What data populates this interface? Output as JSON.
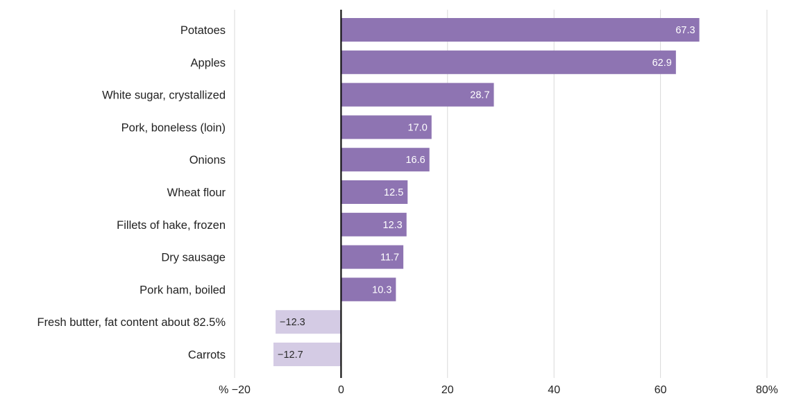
{
  "chart_data": {
    "type": "bar",
    "orientation": "horizontal",
    "categories": [
      "Potatoes",
      "Apples",
      "White sugar, crystallized",
      "Pork, boneless (loin)",
      "Onions",
      "Wheat flour",
      "Fillets of hake, frozen",
      "Dry sausage",
      "Pork ham, boiled",
      "Fresh butter, fat content about 82.5%",
      "Carrots"
    ],
    "values": [
      67.3,
      62.9,
      28.7,
      17.0,
      16.6,
      12.5,
      12.3,
      11.7,
      10.3,
      -12.3,
      -12.7
    ],
    "value_labels": [
      "67.3",
      "62.9",
      "28.7",
      "17.0",
      "16.6",
      "12.5",
      "12.3",
      "11.7",
      "10.3",
      "−12.3",
      "−12.7"
    ],
    "xlim": [
      -20,
      80
    ],
    "ticks": [
      -20,
      0,
      20,
      40,
      60,
      80
    ],
    "tick_labels": [
      "% −20",
      "0",
      "20",
      "40",
      "60",
      "80%"
    ],
    "grid": true,
    "colors": {
      "positive": "#8e74b2",
      "negative": "#d4cbe4",
      "positive_label": "#ffffff",
      "negative_label": "#2a2a2a",
      "zero_line": "#111111",
      "grid": "#d9d9d9"
    }
  }
}
